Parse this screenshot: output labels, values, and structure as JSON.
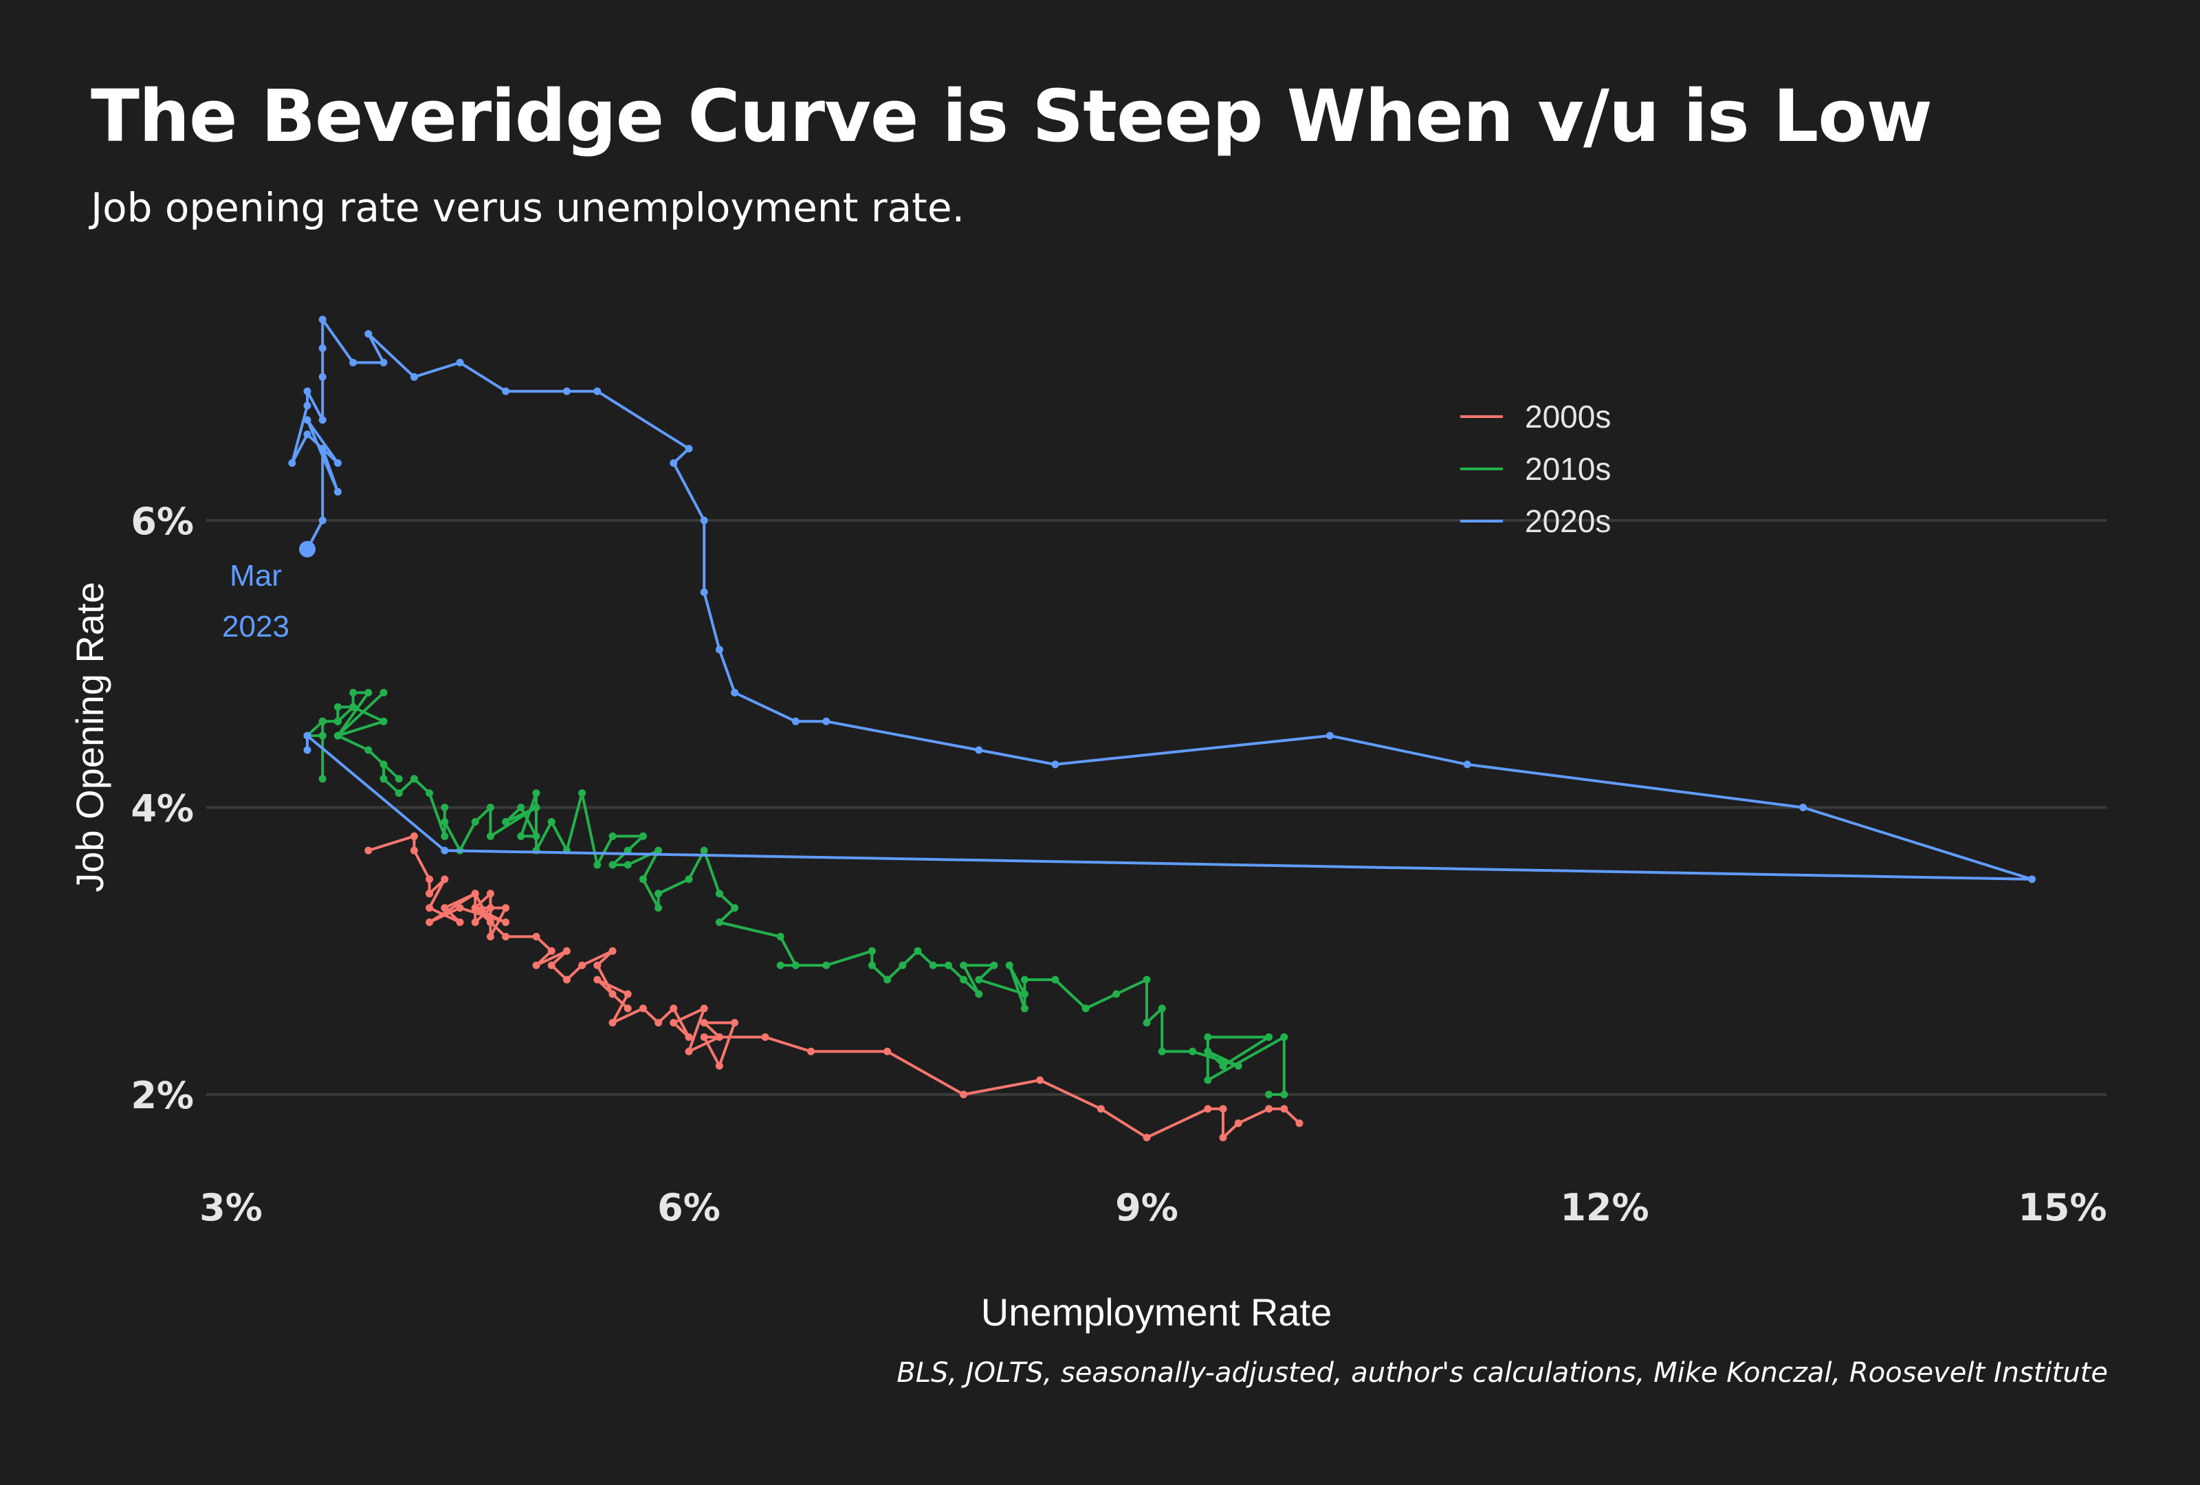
{
  "header": {
    "title": "The Beveridge Curve is Steep When v/u is Low",
    "subtitle": "Job opening rate verus unemployment rate."
  },
  "caption": "BLS, JOLTS, seasonally-adjusted, author's calculations, Mike Konczal, Roosevelt Institute",
  "colors": {
    "background": "#1e1e1e",
    "grid": "#3a3a3a",
    "s2000": "#f8766d",
    "s2010": "#22b14c",
    "s2020": "#619cff"
  },
  "chart_data": {
    "type": "line",
    "title": "The Beveridge Curve is Steep When v/u is Low",
    "subtitle": "Job opening rate verus unemployment rate.",
    "xlabel": "Unemployment Rate",
    "ylabel": "Job Opening Rate",
    "xlim": [
      3,
      15
    ],
    "ylim": [
      1.6,
      7.6
    ],
    "x_ticks": [
      3,
      6,
      9,
      12,
      15
    ],
    "x_tick_labels": [
      "3%",
      "6%",
      "9%",
      "12%",
      "15%"
    ],
    "y_ticks": [
      2,
      4,
      6
    ],
    "y_tick_labels": [
      "2%",
      "4%",
      "6%"
    ],
    "grid": "horizontal major",
    "legend": {
      "position": "top-right",
      "entries": [
        "2000s",
        "2010s",
        "2020s"
      ]
    },
    "annotation": {
      "lines": [
        "Mar",
        "2023"
      ],
      "x": 3.5,
      "y": 5.8
    },
    "series": [
      {
        "name": "2000s",
        "color": "#f8766d",
        "points": [
          [
            3.9,
            3.7
          ],
          [
            4.2,
            3.8
          ],
          [
            4.2,
            3.7
          ],
          [
            4.3,
            3.5
          ],
          [
            4.3,
            3.4
          ],
          [
            4.4,
            3.5
          ],
          [
            4.3,
            3.3
          ],
          [
            4.5,
            3.2
          ],
          [
            4.4,
            3.3
          ],
          [
            4.6,
            3.4
          ],
          [
            4.6,
            3.2
          ],
          [
            4.7,
            3.3
          ],
          [
            4.7,
            3.1
          ],
          [
            4.8,
            3.3
          ],
          [
            4.6,
            3.3
          ],
          [
            4.7,
            3.4
          ],
          [
            4.7,
            3.2
          ],
          [
            4.6,
            3.3
          ],
          [
            4.8,
            3.2
          ],
          [
            4.5,
            3.3
          ],
          [
            4.3,
            3.2
          ],
          [
            4.6,
            3.4
          ],
          [
            4.7,
            3.2
          ],
          [
            4.8,
            3.1
          ],
          [
            5.0,
            3.1
          ],
          [
            5.1,
            3.0
          ],
          [
            5.0,
            2.9
          ],
          [
            5.2,
            3.0
          ],
          [
            5.1,
            2.9
          ],
          [
            5.2,
            2.8
          ],
          [
            5.3,
            2.9
          ],
          [
            5.5,
            3.0
          ],
          [
            5.4,
            2.9
          ],
          [
            5.5,
            2.7
          ],
          [
            5.6,
            2.6
          ],
          [
            5.4,
            2.8
          ],
          [
            5.6,
            2.7
          ],
          [
            5.5,
            2.5
          ],
          [
            5.7,
            2.6
          ],
          [
            5.8,
            2.5
          ],
          [
            5.9,
            2.6
          ],
          [
            6.0,
            2.4
          ],
          [
            5.9,
            2.5
          ],
          [
            6.1,
            2.6
          ],
          [
            6.0,
            2.3
          ],
          [
            6.2,
            2.4
          ],
          [
            6.1,
            2.5
          ],
          [
            6.3,
            2.5
          ],
          [
            6.2,
            2.2
          ],
          [
            6.1,
            2.4
          ],
          [
            6.5,
            2.4
          ],
          [
            6.8,
            2.3
          ],
          [
            7.3,
            2.3
          ],
          [
            7.8,
            2.0
          ],
          [
            8.3,
            2.1
          ],
          [
            8.7,
            1.9
          ],
          [
            9.0,
            1.7
          ],
          [
            9.4,
            1.9
          ],
          [
            9.5,
            1.9
          ],
          [
            9.5,
            1.7
          ],
          [
            9.6,
            1.8
          ],
          [
            9.8,
            1.9
          ],
          [
            9.9,
            1.9
          ],
          [
            10.0,
            1.8
          ]
        ]
      },
      {
        "name": "2010s",
        "color": "#22b14c",
        "points": [
          [
            9.8,
            2.0
          ],
          [
            9.9,
            2.0
          ],
          [
            9.9,
            2.4
          ],
          [
            9.4,
            2.1
          ],
          [
            9.4,
            2.4
          ],
          [
            9.8,
            2.4
          ],
          [
            9.5,
            2.2
          ],
          [
            9.4,
            2.3
          ],
          [
            9.6,
            2.2
          ],
          [
            9.3,
            2.3
          ],
          [
            9.1,
            2.3
          ],
          [
            9.1,
            2.6
          ],
          [
            9.0,
            2.5
          ],
          [
            9.0,
            2.8
          ],
          [
            8.8,
            2.7
          ],
          [
            8.6,
            2.6
          ],
          [
            8.4,
            2.8
          ],
          [
            8.2,
            2.8
          ],
          [
            8.2,
            2.6
          ],
          [
            8.1,
            2.9
          ],
          [
            8.2,
            2.7
          ],
          [
            7.9,
            2.8
          ],
          [
            8.0,
            2.9
          ],
          [
            7.8,
            2.9
          ],
          [
            7.9,
            2.7
          ],
          [
            7.8,
            2.8
          ],
          [
            7.7,
            2.9
          ],
          [
            7.6,
            2.9
          ],
          [
            7.5,
            3.0
          ],
          [
            7.4,
            2.9
          ],
          [
            7.3,
            2.8
          ],
          [
            7.2,
            2.9
          ],
          [
            7.2,
            3.0
          ],
          [
            6.9,
            2.9
          ],
          [
            6.6,
            2.9
          ],
          [
            6.7,
            2.9
          ],
          [
            6.6,
            3.1
          ],
          [
            6.2,
            3.2
          ],
          [
            6.3,
            3.3
          ],
          [
            6.2,
            3.4
          ],
          [
            6.1,
            3.7
          ],
          [
            6.0,
            3.5
          ],
          [
            5.8,
            3.4
          ],
          [
            5.8,
            3.3
          ],
          [
            5.7,
            3.5
          ],
          [
            5.8,
            3.7
          ],
          [
            5.6,
            3.6
          ],
          [
            5.5,
            3.6
          ],
          [
            5.6,
            3.7
          ],
          [
            5.7,
            3.8
          ],
          [
            5.5,
            3.8
          ],
          [
            5.4,
            3.6
          ],
          [
            5.3,
            4.1
          ],
          [
            5.2,
            3.7
          ],
          [
            5.1,
            3.9
          ],
          [
            5.0,
            3.7
          ],
          [
            5.0,
            4.1
          ],
          [
            4.9,
            3.8
          ],
          [
            5.0,
            3.8
          ],
          [
            4.9,
            4.0
          ],
          [
            4.8,
            3.9
          ],
          [
            5.0,
            4.0
          ],
          [
            4.7,
            3.8
          ],
          [
            4.7,
            4.0
          ],
          [
            4.6,
            3.9
          ],
          [
            4.5,
            3.7
          ],
          [
            4.4,
            3.9
          ],
          [
            4.4,
            4.0
          ],
          [
            4.4,
            3.8
          ],
          [
            4.3,
            4.1
          ],
          [
            4.2,
            4.2
          ],
          [
            4.1,
            4.1
          ],
          [
            4.0,
            4.2
          ],
          [
            4.0,
            4.3
          ],
          [
            4.1,
            4.2
          ],
          [
            3.9,
            4.4
          ],
          [
            3.7,
            4.5
          ],
          [
            4.0,
            4.6
          ],
          [
            3.8,
            4.7
          ],
          [
            3.7,
            4.6
          ],
          [
            3.6,
            4.6
          ],
          [
            3.6,
            4.5
          ],
          [
            3.6,
            4.2
          ],
          [
            3.6,
            4.5
          ],
          [
            3.5,
            4.5
          ],
          [
            3.6,
            4.6
          ],
          [
            3.7,
            4.6
          ],
          [
            3.7,
            4.7
          ],
          [
            3.8,
            4.7
          ],
          [
            3.8,
            4.8
          ],
          [
            3.9,
            4.8
          ],
          [
            3.7,
            4.5
          ],
          [
            4.0,
            4.8
          ]
        ]
      },
      {
        "name": "2020s",
        "color": "#619cff",
        "points": [
          [
            3.5,
            4.4
          ],
          [
            3.5,
            4.5
          ],
          [
            4.4,
            3.7
          ],
          [
            14.8,
            3.5
          ],
          [
            13.3,
            4.0
          ],
          [
            11.1,
            4.3
          ],
          [
            10.2,
            4.5
          ],
          [
            8.4,
            4.3
          ],
          [
            7.9,
            4.4
          ],
          [
            6.9,
            4.6
          ],
          [
            6.7,
            4.6
          ],
          [
            6.3,
            4.8
          ],
          [
            6.2,
            5.1
          ],
          [
            6.1,
            5.5
          ],
          [
            6.1,
            6.0
          ],
          [
            5.9,
            6.4
          ],
          [
            6.0,
            6.5
          ],
          [
            5.4,
            6.9
          ],
          [
            5.2,
            6.9
          ],
          [
            4.8,
            6.9
          ],
          [
            4.5,
            7.1
          ],
          [
            4.2,
            7.0
          ],
          [
            3.9,
            7.3
          ],
          [
            4.0,
            7.1
          ],
          [
            3.8,
            7.1
          ],
          [
            3.6,
            7.4
          ],
          [
            3.6,
            7.2
          ],
          [
            3.6,
            7.0
          ],
          [
            3.6,
            6.7
          ],
          [
            3.5,
            6.9
          ],
          [
            3.5,
            6.8
          ],
          [
            3.4,
            6.4
          ],
          [
            3.5,
            6.6
          ],
          [
            3.6,
            6.5
          ],
          [
            3.7,
            6.4
          ],
          [
            3.5,
            6.7
          ],
          [
            3.7,
            6.2
          ],
          [
            3.6,
            6.5
          ],
          [
            3.6,
            6.0
          ],
          [
            3.5,
            5.8
          ]
        ]
      }
    ]
  }
}
